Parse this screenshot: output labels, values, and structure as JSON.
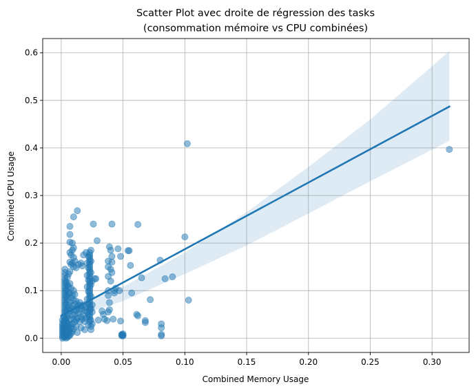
{
  "chart_data": {
    "type": "scatter",
    "title_line1": "Scatter Plot avec droite de régression des tasks",
    "title_line2": "(consommation mémoire vs CPU combinées)",
    "xlabel": "Combined Memory Usage",
    "ylabel": "Combined CPU Usage",
    "xlim": [
      -0.015,
      0.33
    ],
    "ylim": [
      -0.03,
      0.63
    ],
    "xticks": [
      0.0,
      0.05,
      0.1,
      0.15,
      0.2,
      0.25,
      0.3
    ],
    "xtick_labels": [
      "0.00",
      "0.05",
      "0.10",
      "0.15",
      "0.20",
      "0.25",
      "0.30"
    ],
    "yticks": [
      0.0,
      0.1,
      0.2,
      0.3,
      0.4,
      0.5,
      0.6
    ],
    "ytick_labels": [
      "0.0",
      "0.1",
      "0.2",
      "0.3",
      "0.4",
      "0.5",
      "0.6"
    ],
    "grid": true,
    "colors": {
      "points": "#1f77b4",
      "line": "#1f77b4",
      "band": "#1f77b4"
    },
    "regression": {
      "x": [
        0.0,
        0.314
      ],
      "y": [
        0.047,
        0.487
      ],
      "ci_upper": [
        [
          0.0,
          0.06
        ],
        [
          0.05,
          0.108
        ],
        [
          0.1,
          0.18
        ],
        [
          0.15,
          0.265
        ],
        [
          0.2,
          0.36
        ],
        [
          0.25,
          0.46
        ],
        [
          0.314,
          0.603
        ]
      ],
      "ci_lower": [
        [
          0.0,
          0.035
        ],
        [
          0.05,
          0.078
        ],
        [
          0.1,
          0.135
        ],
        [
          0.15,
          0.195
        ],
        [
          0.2,
          0.262
        ],
        [
          0.25,
          0.33
        ],
        [
          0.314,
          0.415
        ]
      ]
    },
    "points": [
      [
        0.001,
        0.0
      ],
      [
        0.001,
        0.005
      ],
      [
        0.001,
        0.01
      ],
      [
        0.001,
        0.015
      ],
      [
        0.001,
        0.02
      ],
      [
        0.001,
        0.025
      ],
      [
        0.001,
        0.03
      ],
      [
        0.002,
        0.002
      ],
      [
        0.002,
        0.008
      ],
      [
        0.002,
        0.012
      ],
      [
        0.002,
        0.018
      ],
      [
        0.002,
        0.022
      ],
      [
        0.002,
        0.028
      ],
      [
        0.003,
        0.003
      ],
      [
        0.003,
        0.006
      ],
      [
        0.003,
        0.01
      ],
      [
        0.003,
        0.016
      ],
      [
        0.003,
        0.021
      ],
      [
        0.003,
        0.027
      ],
      [
        0.003,
        0.033
      ],
      [
        0.004,
        0.0
      ],
      [
        0.004,
        0.005
      ],
      [
        0.004,
        0.012
      ],
      [
        0.004,
        0.018
      ],
      [
        0.004,
        0.025
      ],
      [
        0.004,
        0.035
      ],
      [
        0.005,
        0.002
      ],
      [
        0.005,
        0.009
      ],
      [
        0.005,
        0.015
      ],
      [
        0.005,
        0.024
      ],
      [
        0.005,
        0.032
      ],
      [
        0.006,
        0.004
      ],
      [
        0.006,
        0.011
      ],
      [
        0.006,
        0.02
      ],
      [
        0.006,
        0.03
      ],
      [
        0.007,
        0.006
      ],
      [
        0.007,
        0.016
      ],
      [
        0.007,
        0.028
      ],
      [
        0.008,
        0.01
      ],
      [
        0.008,
        0.022
      ],
      [
        0.009,
        0.014
      ],
      [
        0.009,
        0.03
      ],
      [
        0.01,
        0.02
      ],
      [
        0.011,
        0.034
      ],
      [
        0.012,
        0.025
      ],
      [
        0.002,
        0.035
      ],
      [
        0.003,
        0.04
      ],
      [
        0.004,
        0.042
      ],
      [
        0.001,
        0.038
      ],
      [
        0.002,
        0.045
      ],
      [
        0.003,
        0.05
      ],
      [
        0.003,
        0.055
      ],
      [
        0.003,
        0.06
      ],
      [
        0.003,
        0.065
      ],
      [
        0.003,
        0.07
      ],
      [
        0.003,
        0.075
      ],
      [
        0.003,
        0.08
      ],
      [
        0.003,
        0.085
      ],
      [
        0.003,
        0.09
      ],
      [
        0.003,
        0.095
      ],
      [
        0.003,
        0.1
      ],
      [
        0.003,
        0.105
      ],
      [
        0.003,
        0.11
      ],
      [
        0.003,
        0.115
      ],
      [
        0.003,
        0.12
      ],
      [
        0.003,
        0.125
      ],
      [
        0.003,
        0.132
      ],
      [
        0.003,
        0.138
      ],
      [
        0.003,
        0.145
      ],
      [
        0.004,
        0.058
      ],
      [
        0.004,
        0.072
      ],
      [
        0.004,
        0.088
      ],
      [
        0.004,
        0.102
      ],
      [
        0.004,
        0.118
      ],
      [
        0.005,
        0.045
      ],
      [
        0.005,
        0.063
      ],
      [
        0.005,
        0.082
      ],
      [
        0.005,
        0.098
      ],
      [
        0.005,
        0.112
      ],
      [
        0.005,
        0.128
      ],
      [
        0.006,
        0.052
      ],
      [
        0.006,
        0.07
      ],
      [
        0.006,
        0.092
      ],
      [
        0.006,
        0.108
      ],
      [
        0.006,
        0.135
      ],
      [
        0.007,
        0.04
      ],
      [
        0.007,
        0.058
      ],
      [
        0.007,
        0.076
      ],
      [
        0.007,
        0.095
      ],
      [
        0.007,
        0.115
      ],
      [
        0.007,
        0.14
      ],
      [
        0.007,
        0.16
      ],
      [
        0.007,
        0.18
      ],
      [
        0.007,
        0.202
      ],
      [
        0.007,
        0.218
      ],
      [
        0.007,
        0.235
      ],
      [
        0.008,
        0.062
      ],
      [
        0.008,
        0.085
      ],
      [
        0.008,
        0.105
      ],
      [
        0.008,
        0.155
      ],
      [
        0.008,
        0.175
      ],
      [
        0.009,
        0.048
      ],
      [
        0.009,
        0.068
      ],
      [
        0.009,
        0.09
      ],
      [
        0.009,
        0.158
      ],
      [
        0.009,
        0.185
      ],
      [
        0.009,
        0.2
      ],
      [
        0.01,
        0.04
      ],
      [
        0.01,
        0.06
      ],
      [
        0.01,
        0.08
      ],
      [
        0.01,
        0.1
      ],
      [
        0.01,
        0.15
      ],
      [
        0.01,
        0.17
      ],
      [
        0.01,
        0.19
      ],
      [
        0.01,
        0.255
      ],
      [
        0.011,
        0.05
      ],
      [
        0.011,
        0.072
      ],
      [
        0.011,
        0.092
      ],
      [
        0.011,
        0.162
      ],
      [
        0.012,
        0.038
      ],
      [
        0.012,
        0.058
      ],
      [
        0.012,
        0.078
      ],
      [
        0.012,
        0.148
      ],
      [
        0.013,
        0.042
      ],
      [
        0.013,
        0.065
      ],
      [
        0.013,
        0.268
      ],
      [
        0.014,
        0.052
      ],
      [
        0.014,
        0.07
      ],
      [
        0.014,
        0.155
      ],
      [
        0.015,
        0.035
      ],
      [
        0.015,
        0.06
      ],
      [
        0.015,
        0.075
      ],
      [
        0.016,
        0.045
      ],
      [
        0.016,
        0.068
      ],
      [
        0.016,
        0.158
      ],
      [
        0.017,
        0.04
      ],
      [
        0.017,
        0.062
      ],
      [
        0.017,
        0.152
      ],
      [
        0.018,
        0.048
      ],
      [
        0.018,
        0.07
      ],
      [
        0.019,
        0.035
      ],
      [
        0.019,
        0.058
      ],
      [
        0.02,
        0.042
      ],
      [
        0.02,
        0.065
      ],
      [
        0.018,
        0.175
      ],
      [
        0.02,
        0.18
      ],
      [
        0.013,
        0.012
      ],
      [
        0.016,
        0.022
      ],
      [
        0.019,
        0.018
      ],
      [
        0.022,
        0.028
      ],
      [
        0.023,
        0.035
      ],
      [
        0.023,
        0.04
      ],
      [
        0.023,
        0.045
      ],
      [
        0.023,
        0.05
      ],
      [
        0.023,
        0.055
      ],
      [
        0.023,
        0.06
      ],
      [
        0.023,
        0.065
      ],
      [
        0.023,
        0.07
      ],
      [
        0.023,
        0.075
      ],
      [
        0.023,
        0.08
      ],
      [
        0.023,
        0.085
      ],
      [
        0.023,
        0.09
      ],
      [
        0.023,
        0.095
      ],
      [
        0.023,
        0.1
      ],
      [
        0.023,
        0.105
      ],
      [
        0.023,
        0.11
      ],
      [
        0.023,
        0.115
      ],
      [
        0.023,
        0.12
      ],
      [
        0.023,
        0.125
      ],
      [
        0.023,
        0.13
      ],
      [
        0.023,
        0.135
      ],
      [
        0.023,
        0.14
      ],
      [
        0.023,
        0.145
      ],
      [
        0.023,
        0.15
      ],
      [
        0.023,
        0.155
      ],
      [
        0.023,
        0.16
      ],
      [
        0.023,
        0.165
      ],
      [
        0.023,
        0.17
      ],
      [
        0.023,
        0.175
      ],
      [
        0.023,
        0.18
      ],
      [
        0.024,
        0.038
      ],
      [
        0.024,
        0.062
      ],
      [
        0.024,
        0.088
      ],
      [
        0.024,
        0.112
      ],
      [
        0.024,
        0.138
      ],
      [
        0.024,
        0.162
      ],
      [
        0.024,
        0.185
      ],
      [
        0.022,
        0.048
      ],
      [
        0.022,
        0.072
      ],
      [
        0.022,
        0.098
      ],
      [
        0.022,
        0.122
      ],
      [
        0.022,
        0.148
      ],
      [
        0.022,
        0.172
      ],
      [
        0.021,
        0.055
      ],
      [
        0.021,
        0.082
      ],
      [
        0.021,
        0.108
      ],
      [
        0.021,
        0.132
      ],
      [
        0.021,
        0.158
      ],
      [
        0.025,
        0.03
      ],
      [
        0.025,
        0.07
      ],
      [
        0.024,
        0.025
      ],
      [
        0.024,
        0.018
      ],
      [
        0.025,
        0.055
      ],
      [
        0.025,
        0.12
      ],
      [
        0.026,
        0.24
      ],
      [
        0.027,
        0.125
      ],
      [
        0.028,
        0.125
      ],
      [
        0.029,
        0.205
      ],
      [
        0.03,
        0.038
      ],
      [
        0.033,
        0.057
      ],
      [
        0.034,
        0.05
      ],
      [
        0.035,
        0.04
      ],
      [
        0.037,
        0.037
      ],
      [
        0.038,
        0.055
      ],
      [
        0.038,
        0.09
      ],
      [
        0.038,
        0.1
      ],
      [
        0.038,
        0.13
      ],
      [
        0.038,
        0.15
      ],
      [
        0.038,
        0.162
      ],
      [
        0.039,
        0.192
      ],
      [
        0.039,
        0.06
      ],
      [
        0.039,
        0.075
      ],
      [
        0.04,
        0.12
      ],
      [
        0.04,
        0.145
      ],
      [
        0.04,
        0.185
      ],
      [
        0.041,
        0.24
      ],
      [
        0.041,
        0.16
      ],
      [
        0.041,
        0.138
      ],
      [
        0.041,
        0.172
      ],
      [
        0.042,
        0.04
      ],
      [
        0.043,
        0.095
      ],
      [
        0.043,
        0.1
      ],
      [
        0.044,
        0.105
      ],
      [
        0.046,
        0.188
      ],
      [
        0.047,
        0.1
      ],
      [
        0.048,
        0.036
      ],
      [
        0.048,
        0.172
      ],
      [
        0.049,
        0.005
      ],
      [
        0.049,
        0.007
      ],
      [
        0.049,
        0.008
      ],
      [
        0.05,
        0.005
      ],
      [
        0.05,
        0.009
      ],
      [
        0.05,
        0.006
      ],
      [
        0.054,
        0.184
      ],
      [
        0.055,
        0.184
      ],
      [
        0.056,
        0.153
      ],
      [
        0.057,
        0.095
      ],
      [
        0.061,
        0.05
      ],
      [
        0.062,
        0.047
      ],
      [
        0.062,
        0.239
      ],
      [
        0.065,
        0.127
      ],
      [
        0.068,
        0.037
      ],
      [
        0.068,
        0.033
      ],
      [
        0.072,
        0.081
      ],
      [
        0.08,
        0.164
      ],
      [
        0.081,
        0.03
      ],
      [
        0.081,
        0.022
      ],
      [
        0.081,
        0.008
      ],
      [
        0.081,
        0.005
      ],
      [
        0.084,
        0.125
      ],
      [
        0.09,
        0.129
      ],
      [
        0.1,
        0.213
      ],
      [
        0.102,
        0.409
      ],
      [
        0.103,
        0.08
      ],
      [
        0.314,
        0.397
      ]
    ]
  }
}
